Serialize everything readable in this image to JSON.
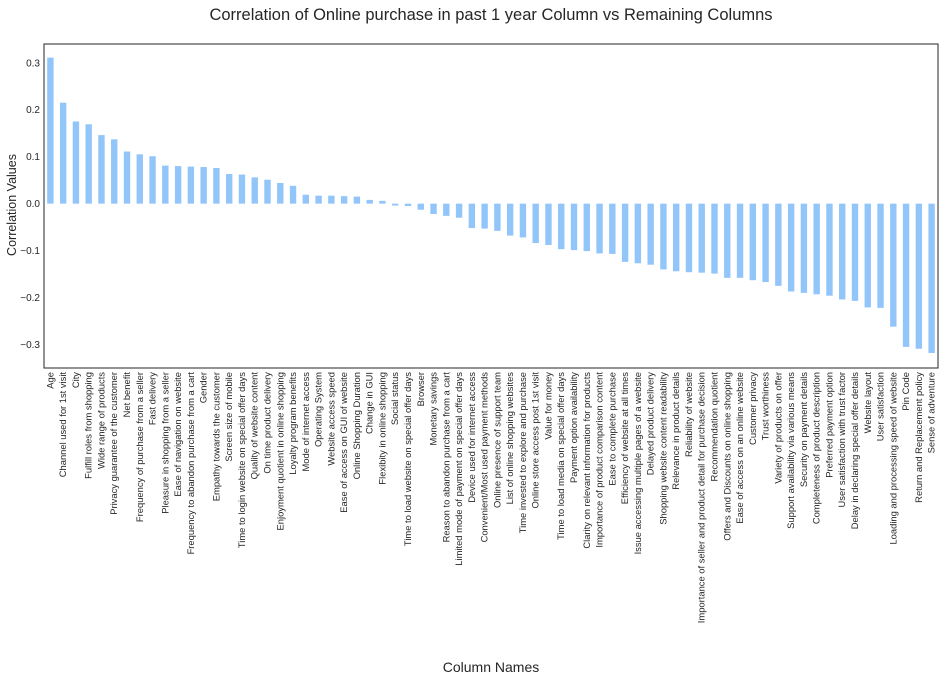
{
  "chart_data": {
    "type": "bar",
    "title": "Correlation of Online purchase in past 1 year Column vs Remaining Columns",
    "xlabel": "Column Names",
    "ylabel": "Correlation Values",
    "ylim": [
      -0.35,
      0.34
    ],
    "yticks": [
      -0.3,
      -0.2,
      -0.1,
      0.0,
      0.1,
      0.2,
      0.3
    ],
    "ytick_labels": [
      "−0.3",
      "−0.2",
      "−0.1",
      "0.0",
      "0.1",
      "0.2",
      "0.3"
    ],
    "grid": false,
    "bar_color": "#92c5f9",
    "categories": [
      "Age",
      "Channel used for 1st visit",
      "City",
      "Fulfill roles from shopping",
      "Wide range of products",
      "Privacy guarantee of the customer",
      "Net benefit",
      "Frequency of purchase from a seller",
      "Fast delivery",
      "Pleasure in shopping from a seller",
      "Ease of navigation on website",
      "Frequency to abandon purchase from a cart",
      "Gender",
      "Empathy towards the customer",
      "Screen size of mobile",
      "Time to login website on special offer days",
      "Quality of website content",
      "On time product delivery",
      "Enjoyment quotient in online shopping",
      "Loyalty program benefits",
      "Mode of internet access",
      "Operating System",
      "Website access speed",
      "Ease of access on GUI of website",
      "Online Shopping Duration",
      "Change in GUI",
      "Flexibity in online shopping",
      "Social status",
      "Time to load website on special offer days",
      "Browser",
      "Monetary savings",
      "Reason to abandon purchase from a cart",
      "Limited mode of payment on special offer days",
      "Device used for internet access",
      "Convenient/Most used payment methods",
      "Online presence of support team",
      "List of online shopping websites",
      "Time invested to explore and purchase",
      "Online store access post 1st visit",
      "Value for money",
      "Time to load media on special offer days",
      "Payment option availability",
      "Clarity on relevant information for products",
      "Importance of product comparison content",
      "Ease to complete purchase",
      "Efficiency of website at all times",
      "Issue accessing multiple pages of a website",
      "Delayed product delivery",
      "Shopping website content readability",
      "Relevance in product details",
      "Reliability of website",
      "Importance of seller and product detail for purchase decision",
      "Recommendation quotient",
      "Offers and Discounts on online shopping",
      "Ease of access on an online website",
      "Customer privacy",
      "Trust worthiness",
      "Variety of products on offer",
      "Support availability via various means",
      "Security on payment details",
      "Completeness of product description",
      "Preferred payment option",
      "User satisfaction with trust factor",
      "Delay in declaring special offer details",
      "Website layout",
      "User satisfaction",
      "Loading and processing speed of website",
      "Pin Code",
      "Return and Replacement policy",
      "Sense of adventure"
    ],
    "values": [
      0.311,
      0.215,
      0.175,
      0.169,
      0.146,
      0.137,
      0.111,
      0.105,
      0.101,
      0.081,
      0.08,
      0.079,
      0.078,
      0.076,
      0.063,
      0.062,
      0.056,
      0.051,
      0.044,
      0.038,
      0.019,
      0.017,
      0.017,
      0.016,
      0.015,
      0.008,
      0.006,
      -0.004,
      -0.005,
      -0.013,
      -0.022,
      -0.026,
      -0.03,
      -0.052,
      -0.053,
      -0.058,
      -0.068,
      -0.072,
      -0.084,
      -0.088,
      -0.097,
      -0.099,
      -0.101,
      -0.106,
      -0.107,
      -0.124,
      -0.127,
      -0.13,
      -0.14,
      -0.144,
      -0.146,
      -0.147,
      -0.149,
      -0.158,
      -0.158,
      -0.163,
      -0.167,
      -0.175,
      -0.187,
      -0.19,
      -0.193,
      -0.196,
      -0.204,
      -0.207,
      -0.221,
      -0.222,
      -0.262,
      -0.305,
      -0.309,
      -0.318
    ]
  }
}
